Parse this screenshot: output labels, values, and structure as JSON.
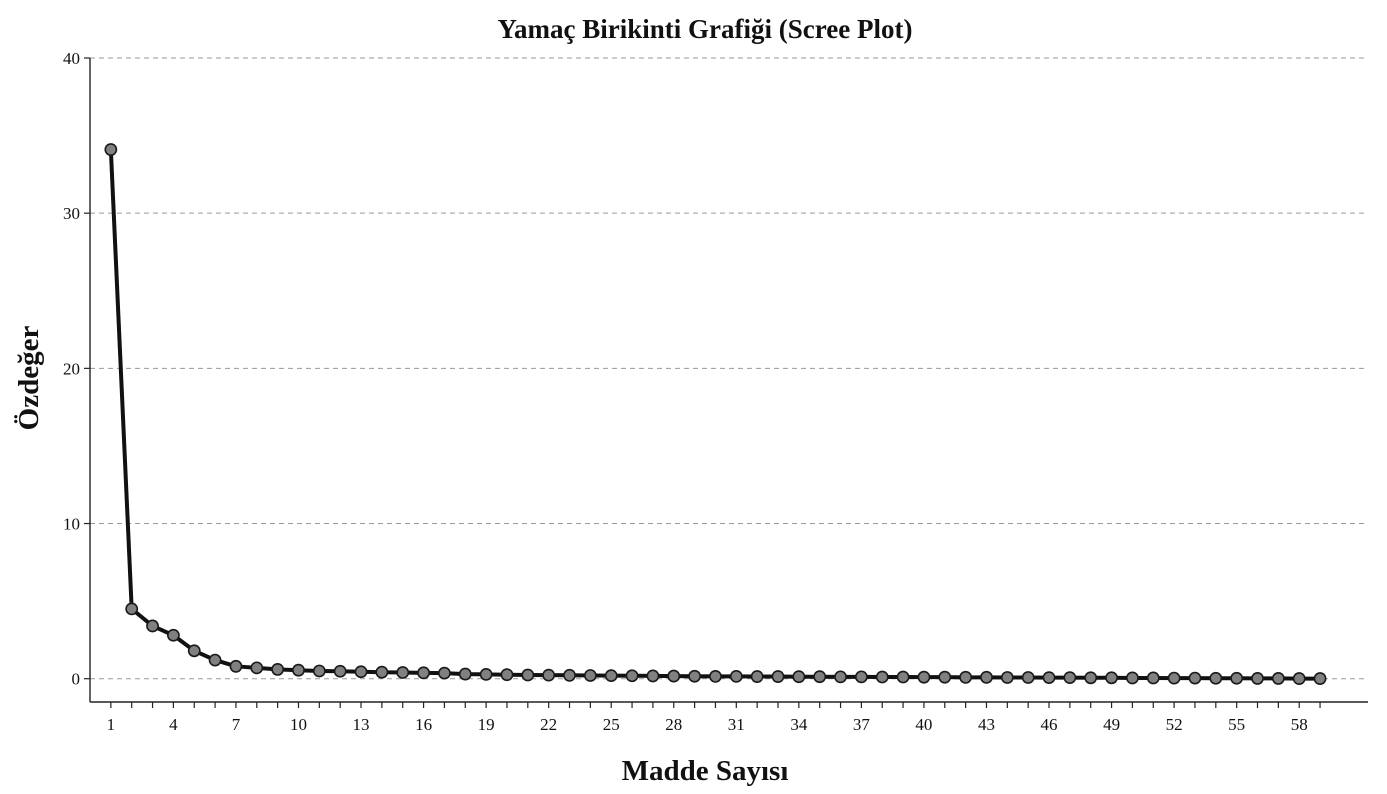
{
  "chart_data": {
    "type": "line",
    "title": "Yamaç Birikinti Grafiği (Scree Plot)",
    "xlabel": "Madde Sayısı",
    "ylabel": "Özdeğer",
    "xlim": [
      0,
      61.3
    ],
    "ylim": [
      -1.5,
      40
    ],
    "x_tick_labels": [
      "1",
      "4",
      "7",
      "10",
      "13",
      "16",
      "19",
      "22",
      "25",
      "28",
      "31",
      "34",
      "37",
      "40",
      "43",
      "46",
      "49",
      "52",
      "55",
      "58"
    ],
    "y_tick_labels": [
      "0",
      "10",
      "20",
      "30",
      "40"
    ],
    "y_ticks": [
      0,
      10,
      20,
      30,
      40
    ],
    "grid": "horizontal dashed",
    "legend": "none",
    "line_color": "#111111",
    "marker_fill": "#808080",
    "series": [
      {
        "x": [
          1,
          2,
          3,
          4,
          5,
          6,
          7,
          8,
          9,
          10,
          11,
          12,
          13,
          14,
          15,
          16,
          17,
          18,
          19,
          20,
          21,
          22,
          23,
          24,
          25,
          26,
          27,
          28,
          29,
          30,
          31,
          32,
          33,
          34,
          35,
          36,
          37,
          38,
          39,
          40,
          41,
          42,
          43,
          44,
          45,
          46,
          47,
          48,
          49,
          50,
          51,
          52,
          53,
          54,
          55,
          56,
          57,
          58,
          59
        ],
        "values": [
          34.1,
          4.5,
          3.4,
          2.8,
          1.8,
          1.2,
          0.8,
          0.7,
          0.6,
          0.55,
          0.5,
          0.48,
          0.45,
          0.42,
          0.4,
          0.38,
          0.36,
          0.3,
          0.28,
          0.26,
          0.24,
          0.23,
          0.22,
          0.21,
          0.2,
          0.19,
          0.18,
          0.17,
          0.16,
          0.15,
          0.15,
          0.14,
          0.14,
          0.13,
          0.13,
          0.12,
          0.12,
          0.11,
          0.11,
          0.1,
          0.1,
          0.09,
          0.09,
          0.08,
          0.08,
          0.07,
          0.07,
          0.06,
          0.06,
          0.05,
          0.05,
          0.04,
          0.04,
          0.03,
          0.03,
          0.02,
          0.02,
          0.01,
          0.01
        ]
      }
    ]
  }
}
